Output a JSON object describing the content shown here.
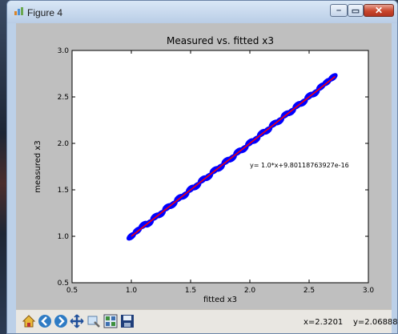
{
  "window": {
    "title": "Figure 4"
  },
  "chart_data": {
    "type": "scatter",
    "title": "Measured vs. fitted x3",
    "xlabel": "fitted x3",
    "ylabel": "measured x3",
    "xlim": [
      0.5,
      3.0
    ],
    "ylim": [
      0.5,
      3.0
    ],
    "xticks": [
      "0.5",
      "1.0",
      "1.5",
      "2.0",
      "2.5",
      "3.0"
    ],
    "yticks": [
      "0.5",
      "1.0",
      "1.5",
      "2.0",
      "2.5",
      "3.0"
    ],
    "annotation": "y= 1.0*x+9.80118763927e-16",
    "scatter_color": "#0000ff",
    "fit_color": "#ff0000",
    "fit_line": {
      "x": [
        1.0,
        2.72
      ],
      "y": [
        1.0,
        2.72
      ]
    },
    "points_x": [
      1.0,
      1.05,
      1.1,
      1.15,
      1.2,
      1.25,
      1.3,
      1.35,
      1.4,
      1.45,
      1.5,
      1.55,
      1.6,
      1.65,
      1.7,
      1.75,
      1.8,
      1.85,
      1.9,
      1.95,
      2.0,
      2.05,
      2.1,
      2.15,
      2.2,
      2.25,
      2.3,
      2.35,
      2.4,
      2.45,
      2.5,
      2.55,
      2.6,
      2.65,
      2.7
    ],
    "points_y": [
      1.0,
      1.06,
      1.12,
      1.14,
      1.21,
      1.24,
      1.31,
      1.34,
      1.41,
      1.44,
      1.51,
      1.54,
      1.61,
      1.64,
      1.71,
      1.74,
      1.81,
      1.84,
      1.91,
      1.94,
      2.01,
      2.04,
      2.11,
      2.14,
      2.21,
      2.24,
      2.31,
      2.34,
      2.41,
      2.44,
      2.51,
      2.54,
      2.61,
      2.66,
      2.71
    ]
  },
  "toolbar": {
    "buttons": [
      "home-icon",
      "back-icon",
      "forward-icon",
      "pan-icon",
      "zoom-icon",
      "subplots-icon",
      "save-icon"
    ],
    "x_readout": "x=2.3201",
    "y_readout": "y=2.06888"
  }
}
